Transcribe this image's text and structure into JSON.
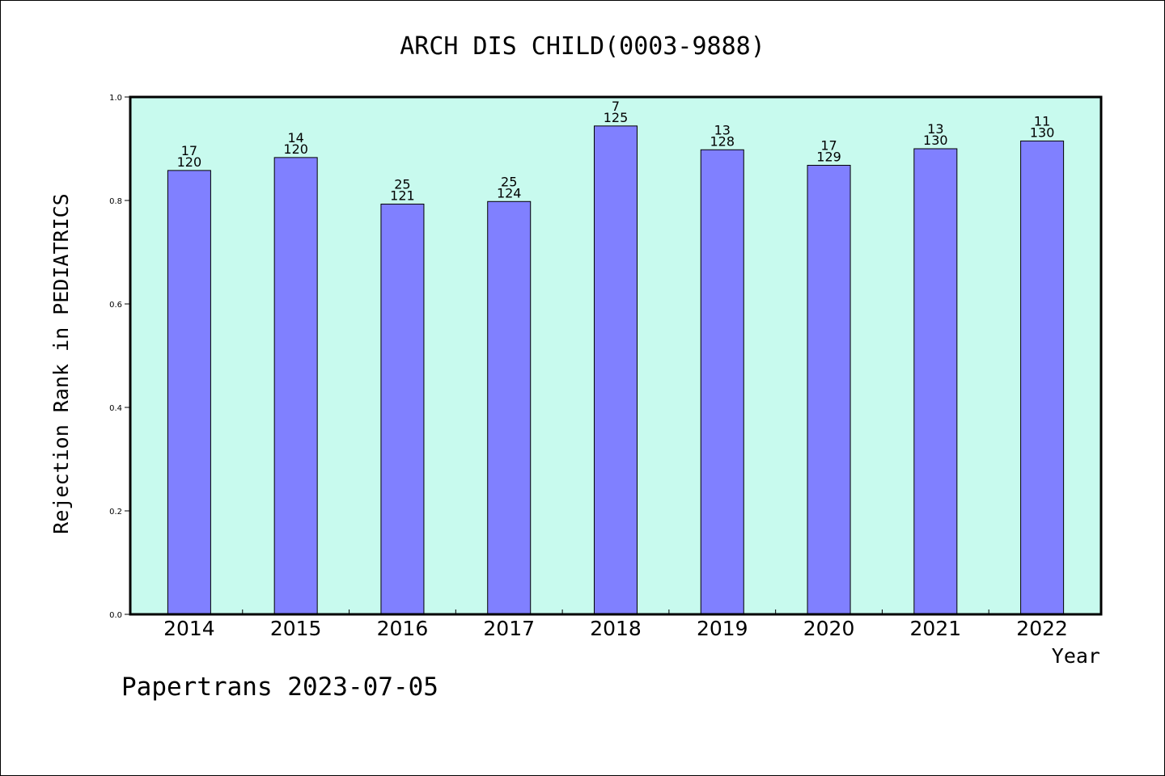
{
  "chart_data": {
    "type": "bar",
    "title": "ARCH DIS CHILD(0003-9888)",
    "xlabel": "Year",
    "ylabel": "Rejection Rank in PEDIATRICS",
    "ylim": [
      0,
      1.0
    ],
    "yticks": [
      "0.0",
      "0.2",
      "0.4",
      "0.6",
      "0.8",
      "1.0"
    ],
    "grid": false,
    "categories": [
      "2014",
      "2015",
      "2016",
      "2017",
      "2018",
      "2019",
      "2020",
      "2021",
      "2022"
    ],
    "values": [
      0.858,
      0.883,
      0.793,
      0.798,
      0.944,
      0.898,
      0.868,
      0.9,
      0.915
    ],
    "rank_labels": [
      "17",
      "14",
      "25",
      "25",
      "7",
      "13",
      "17",
      "13",
      "11"
    ],
    "total_labels": [
      "120",
      "120",
      "121",
      "124",
      "125",
      "128",
      "129",
      "130",
      "130"
    ],
    "colors": {
      "plot_bg": "#c8faee",
      "bar": "#8080ff",
      "bar_edge": "#000000"
    }
  },
  "footer": "Papertrans 2023-07-05"
}
